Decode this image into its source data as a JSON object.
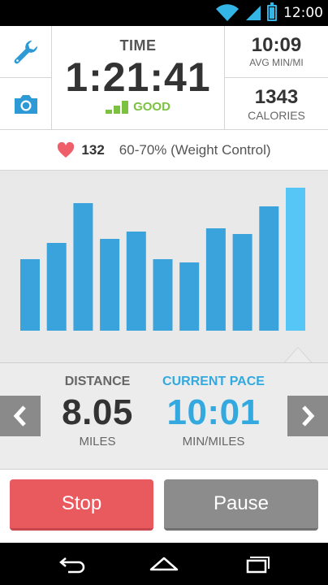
{
  "status_bar": {
    "time": "12:00",
    "icons": [
      "wifi-icon",
      "signal-icon",
      "battery-icon"
    ],
    "accent": "#33b5e5"
  },
  "header": {
    "settings_icon": "wrench-icon",
    "camera_icon": "camera-icon",
    "time_label": "TIME",
    "time_value": "1:21:41",
    "gps_status": "GOOD",
    "gps_signal_level": 3,
    "gps_color": "#7cc142",
    "avg_pace_value": "10:09",
    "avg_pace_label": "AVG MIN/MI",
    "calories_value": "1343",
    "calories_label": "CALORIES"
  },
  "heart_rate": {
    "icon": "heart-icon",
    "value": "132",
    "zone": "60-70% (Weight Control)",
    "color": "#ee5f69"
  },
  "chart_data": {
    "type": "bar",
    "categories": [
      "1",
      "2",
      "3",
      "4",
      "5",
      "6",
      "7",
      "8",
      "9",
      "10",
      "11"
    ],
    "values": [
      88,
      108,
      157,
      113,
      122,
      88,
      84,
      126,
      119,
      153,
      176
    ],
    "ylim": [
      0,
      195
    ],
    "bar_color": "#3aa3dc",
    "highlight_color": "#55c6f5",
    "highlight_index": 10,
    "grid": false
  },
  "pace": {
    "distance_label": "DISTANCE",
    "distance_value": "8.05",
    "distance_unit": "MILES",
    "current_label": "CURRENT PACE",
    "current_value": "10:01",
    "current_unit": "MIN/MILES",
    "current_color": "#33a9df",
    "prev_icon": "chevron-left-icon",
    "next_icon": "chevron-right-icon"
  },
  "actions": {
    "stop_label": "Stop",
    "pause_label": "Pause",
    "stop_color": "#e95a5f",
    "pause_color": "#8c8c8c"
  },
  "nav_bar": {
    "back_icon": "back-icon",
    "home_icon": "home-icon",
    "recents_icon": "recents-icon"
  }
}
